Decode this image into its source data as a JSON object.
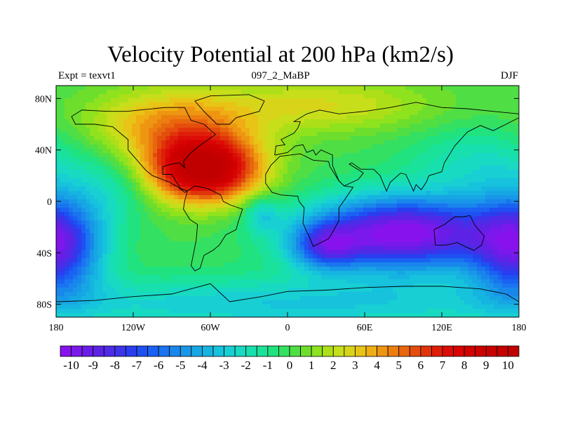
{
  "chart_data": {
    "type": "heatmap",
    "title": "Velocity Potential at 200 hPa (km2/s)",
    "left_string": "Expt = texvt1",
    "center_string": "097_2_MaBP",
    "right_string": "DJF",
    "x_range": [
      -180,
      180
    ],
    "y_range": [
      -90,
      90
    ],
    "x_ticks": [
      {
        "value": -180,
        "label": "180"
      },
      {
        "value": -120,
        "label": "120W"
      },
      {
        "value": -60,
        "label": "60W"
      },
      {
        "value": 0,
        "label": "0"
      },
      {
        "value": 60,
        "label": "60E"
      },
      {
        "value": 120,
        "label": "120E"
      },
      {
        "value": 180,
        "label": "180"
      }
    ],
    "y_ticks": [
      {
        "value": 80,
        "label": "80N"
      },
      {
        "value": 40,
        "label": "40N"
      },
      {
        "value": 0,
        "label": "0"
      },
      {
        "value": -40,
        "label": "40S"
      },
      {
        "value": -80,
        "label": "80S"
      }
    ],
    "colorbar": {
      "min": -10.5,
      "max": 10.5,
      "step": 0.5,
      "labels": [
        "-10",
        "-9",
        "-8",
        "-7",
        "-6",
        "-5",
        "-4",
        "-3",
        "-2",
        "-1",
        "0",
        "1",
        "2",
        "3",
        "4",
        "5",
        "6",
        "7",
        "8",
        "9",
        "10"
      ],
      "colors": [
        "#8812ee",
        "#7b18eb",
        "#6a1de8",
        "#5c23e6",
        "#4e2be7",
        "#3c33ea",
        "#2a3ef0",
        "#1e50f2",
        "#1a62f2",
        "#1a74f0",
        "#1986ec",
        "#1897e8",
        "#17a6e4",
        "#16b4e0",
        "#17c2dc",
        "#18cfd4",
        "#18d9c2",
        "#18dfae",
        "#1ae29a",
        "#20e27e",
        "#34e062",
        "#50de45",
        "#6ede2c",
        "#8ee21e",
        "#acdf18",
        "#c6df1a",
        "#d8d41a",
        "#e8c416",
        "#eeae14",
        "#ee9612",
        "#ec7e10",
        "#e8660e",
        "#e44e0c",
        "#e0340a",
        "#de1e08",
        "#dc0c06",
        "#d80404",
        "#d20000",
        "#cc0000",
        "#c80000",
        "#c40000",
        "#c00000"
      ]
    },
    "field_centers": [
      {
        "lon": -65,
        "lat": 25,
        "value": 10.5,
        "sx": 30,
        "sy": 18,
        "note": "upper-level divergence max over Americas/Atlantic"
      },
      {
        "lon": -90,
        "lat": 60,
        "value": 4.0,
        "sx": 45,
        "sy": 20
      },
      {
        "lon": 90,
        "lat": -25,
        "value": -10.6,
        "sx": 52,
        "sy": 20,
        "note": "convergence min over Indian Ocean / Australia"
      },
      {
        "lon": 30,
        "lat": -35,
        "value": -5.0,
        "sx": 18,
        "sy": 12
      },
      {
        "lon": -180,
        "lat": -35,
        "value": -8.0,
        "sx": 25,
        "sy": 28
      },
      {
        "lon": 150,
        "lat": 30,
        "value": -2.0,
        "sx": 40,
        "sy": 20
      },
      {
        "lon": -135,
        "lat": 10,
        "value": -1.5,
        "sx": 22,
        "sy": 18
      },
      {
        "lon": -20,
        "lat": -10,
        "value": -2.5,
        "sx": 10,
        "sy": 10
      },
      {
        "lon": 30,
        "lat": 75,
        "value": 2.5,
        "sx": 60,
        "sy": 15
      },
      {
        "lon": 0,
        "lat": -80,
        "value": -3.0,
        "sx": 180,
        "sy": 15
      }
    ],
    "continents": [
      {
        "name": "North America",
        "outline": [
          [
            -168,
            66
          ],
          [
            -160,
            71
          ],
          [
            -140,
            70
          ],
          [
            -125,
            70
          ],
          [
            -95,
            73
          ],
          [
            -80,
            73
          ],
          [
            -75,
            63
          ],
          [
            -65,
            60
          ],
          [
            -56,
            52
          ],
          [
            -66,
            45
          ],
          [
            -70,
            42
          ],
          [
            -76,
            37
          ],
          [
            -81,
            31
          ],
          [
            -80,
            26
          ],
          [
            -84,
            30
          ],
          [
            -90,
            29
          ],
          [
            -97,
            27
          ],
          [
            -97,
            21
          ],
          [
            -90,
            21
          ],
          [
            -87,
            16
          ],
          [
            -83,
            10
          ],
          [
            -78,
            8
          ],
          [
            -80,
            7
          ],
          [
            -85,
            11
          ],
          [
            -92,
            15
          ],
          [
            -105,
            20
          ],
          [
            -110,
            24
          ],
          [
            -117,
            32
          ],
          [
            -124,
            40
          ],
          [
            -124,
            48
          ],
          [
            -136,
            58
          ],
          [
            -150,
            60
          ],
          [
            -165,
            60
          ],
          [
            -168,
            66
          ]
        ]
      },
      {
        "name": "Greenland",
        "outline": [
          [
            -55,
            60
          ],
          [
            -45,
            60
          ],
          [
            -40,
            65
          ],
          [
            -22,
            70
          ],
          [
            -18,
            78
          ],
          [
            -30,
            83
          ],
          [
            -60,
            82
          ],
          [
            -72,
            78
          ],
          [
            -65,
            70
          ],
          [
            -55,
            60
          ]
        ]
      },
      {
        "name": "South America",
        "outline": [
          [
            -78,
            8
          ],
          [
            -72,
            12
          ],
          [
            -62,
            10
          ],
          [
            -52,
            5
          ],
          [
            -50,
            0
          ],
          [
            -44,
            -3
          ],
          [
            -35,
            -6
          ],
          [
            -38,
            -15
          ],
          [
            -40,
            -22
          ],
          [
            -48,
            -26
          ],
          [
            -53,
            -34
          ],
          [
            -58,
            -38
          ],
          [
            -65,
            -42
          ],
          [
            -68,
            -52
          ],
          [
            -72,
            -54
          ],
          [
            -75,
            -50
          ],
          [
            -73,
            -40
          ],
          [
            -71,
            -30
          ],
          [
            -70,
            -18
          ],
          [
            -76,
            -14
          ],
          [
            -81,
            -6
          ],
          [
            -80,
            0
          ],
          [
            -78,
            8
          ]
        ]
      },
      {
        "name": "Europe and Asia",
        "outline": [
          [
            -10,
            36
          ],
          [
            -9,
            43
          ],
          [
            -2,
            44
          ],
          [
            -5,
            48
          ],
          [
            5,
            53
          ],
          [
            8,
            57
          ],
          [
            10,
            62
          ],
          [
            5,
            62
          ],
          [
            15,
            68
          ],
          [
            25,
            71
          ],
          [
            40,
            68
          ],
          [
            60,
            70
          ],
          [
            80,
            73
          ],
          [
            100,
            77
          ],
          [
            120,
            73
          ],
          [
            140,
            72
          ],
          [
            160,
            70
          ],
          [
            180,
            68
          ],
          [
            180,
            65
          ],
          [
            170,
            60
          ],
          [
            160,
            55
          ],
          [
            150,
            59
          ],
          [
            140,
            54
          ],
          [
            130,
            43
          ],
          [
            127,
            38
          ],
          [
            122,
            30
          ],
          [
            120,
            23
          ],
          [
            110,
            20
          ],
          [
            108,
            15
          ],
          [
            104,
            9
          ],
          [
            100,
            13
          ],
          [
            98,
            8
          ],
          [
            92,
            21
          ],
          [
            88,
            22
          ],
          [
            80,
            15
          ],
          [
            77,
            8
          ],
          [
            72,
            20
          ],
          [
            67,
            25
          ],
          [
            57,
            25
          ],
          [
            50,
            30
          ],
          [
            48,
            29
          ],
          [
            56,
            24
          ],
          [
            59,
            22
          ],
          [
            55,
            17
          ],
          [
            44,
            12
          ],
          [
            40,
            16
          ],
          [
            35,
            28
          ],
          [
            35,
            36
          ],
          [
            26,
            40
          ],
          [
            22,
            36
          ],
          [
            20,
            40
          ],
          [
            15,
            38
          ],
          [
            12,
            44
          ],
          [
            6,
            43
          ],
          [
            0,
            38
          ],
          [
            -10,
            36
          ]
        ]
      },
      {
        "name": "Africa",
        "outline": [
          [
            -17,
            21
          ],
          [
            -13,
            28
          ],
          [
            -6,
            35
          ],
          [
            10,
            37
          ],
          [
            20,
            32
          ],
          [
            32,
            31
          ],
          [
            33,
            27
          ],
          [
            40,
            16
          ],
          [
            44,
            12
          ],
          [
            51,
            11
          ],
          [
            45,
            2
          ],
          [
            40,
            -5
          ],
          [
            40,
            -15
          ],
          [
            35,
            -24
          ],
          [
            32,
            -29
          ],
          [
            20,
            -35
          ],
          [
            18,
            -30
          ],
          [
            12,
            -17
          ],
          [
            13,
            -5
          ],
          [
            9,
            0
          ],
          [
            8,
            4
          ],
          [
            -5,
            5
          ],
          [
            -12,
            7
          ],
          [
            -17,
            14
          ],
          [
            -17,
            21
          ]
        ]
      },
      {
        "name": "Australia",
        "outline": [
          [
            114,
            -22
          ],
          [
            122,
            -18
          ],
          [
            130,
            -12
          ],
          [
            137,
            -12
          ],
          [
            142,
            -11
          ],
          [
            146,
            -19
          ],
          [
            153,
            -27
          ],
          [
            151,
            -34
          ],
          [
            145,
            -38
          ],
          [
            138,
            -35
          ],
          [
            132,
            -32
          ],
          [
            123,
            -34
          ],
          [
            115,
            -34
          ],
          [
            114,
            -22
          ]
        ]
      },
      {
        "name": "Antarctica",
        "outline": [
          [
            -180,
            -78
          ],
          [
            -150,
            -77
          ],
          [
            -120,
            -74
          ],
          [
            -90,
            -72
          ],
          [
            -60,
            -64
          ],
          [
            -45,
            -78
          ],
          [
            -20,
            -74
          ],
          [
            0,
            -70
          ],
          [
            30,
            -69
          ],
          [
            60,
            -67
          ],
          [
            90,
            -66
          ],
          [
            120,
            -66
          ],
          [
            150,
            -68
          ],
          [
            170,
            -72
          ],
          [
            180,
            -78
          ]
        ]
      }
    ]
  }
}
